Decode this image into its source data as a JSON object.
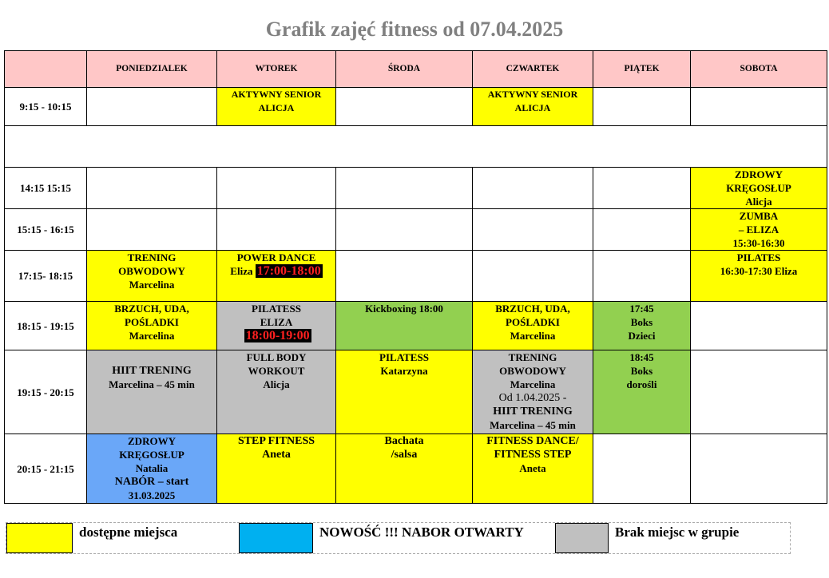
{
  "title": "Grafik zajęć fitness od 07.04.2025",
  "colors": {
    "available": "#ffff00",
    "full": "#c0c0c0",
    "green": "#92d050",
    "new": "#6aa7f8",
    "legend_new": "#00b0f0",
    "header": "#ffc7c7"
  },
  "days": [
    "",
    "PONIEDZIALEK",
    "WTOREK",
    "ŚRODA",
    "CZWARTEK",
    "PIĄTEK",
    "SOBOTA"
  ],
  "rows": [
    {
      "time": "9:15 - 10:15",
      "cells": [
        null,
        {
          "color": "available",
          "lines": [
            {
              "text": "AKTYWNY SENIOR",
              "style": "small"
            },
            {
              "text": "ALICJA",
              "style": "small"
            }
          ]
        },
        null,
        {
          "color": "available",
          "lines": [
            {
              "text": "AKTYWNY SENIOR",
              "style": "small"
            },
            {
              "text": "ALICJA",
              "style": "small"
            }
          ]
        },
        null,
        null
      ]
    },
    {
      "time": "",
      "empty": true
    },
    {
      "time": "14:15 15:15",
      "cells": [
        null,
        null,
        null,
        null,
        null,
        {
          "color": "available",
          "lines": [
            {
              "text": "ZDROWY"
            },
            {
              "text": "KRĘGOSŁUP"
            },
            {
              "text": "Alicja"
            }
          ]
        }
      ]
    },
    {
      "time": "15:15 - 16:15",
      "cells": [
        null,
        null,
        null,
        null,
        null,
        {
          "color": "available",
          "lines": [
            {
              "text": "ZUMBA"
            },
            {
              "text": "– ELIZA"
            },
            {
              "text": "15:30-16:30"
            }
          ]
        }
      ]
    },
    {
      "time": "17:15- 18:15",
      "cells": [
        {
          "color": "available",
          "lines": [
            {
              "text": "TRENING"
            },
            {
              "text": "OBWODOWY"
            },
            {
              "text": "Marcelina"
            }
          ]
        },
        {
          "color": "available",
          "lines": [
            {
              "text": "POWER DANCE"
            },
            {
              "text": "Eliza ",
              "hl": "17:00-18:00"
            }
          ]
        },
        null,
        null,
        null,
        {
          "color": "available",
          "lines": [
            {
              "text": "PILATES"
            },
            {
              "text": "16:30-17:30 Eliza"
            }
          ]
        }
      ]
    },
    {
      "time": "18:15 - 19:15",
      "cells": [
        {
          "color": "available",
          "lines": [
            {
              "text": "BRZUCH, UDA,"
            },
            {
              "text": "POŚLADKI"
            },
            {
              "text": "Marcelina"
            }
          ]
        },
        {
          "color": "full",
          "lines": [
            {
              "text": "PILATESS"
            },
            {
              "text": "ELIZA"
            },
            {
              "text": "",
              "hl": "18:00-19:00"
            }
          ]
        },
        {
          "color": "green",
          "lines": [
            {
              "text": "Kickboxing 18:00"
            }
          ]
        },
        {
          "color": "available",
          "lines": [
            {
              "text": "BRZUCH, UDA,"
            },
            {
              "text": "POŚLADKI"
            },
            {
              "text": "Marcelina"
            }
          ]
        },
        {
          "color": "green",
          "lines": [
            {
              "text": "17:45"
            },
            {
              "text": "Boks"
            },
            {
              "text": "Dzieci"
            }
          ]
        },
        null
      ]
    },
    {
      "time": "19:15 - 20:15",
      "cells": [
        {
          "color": "full",
          "lines": [
            {
              "text": ""
            },
            {
              "text": "HIIT TRENING",
              "style": "big"
            },
            {
              "text": "Marcelina – 45 min"
            }
          ]
        },
        {
          "color": "full",
          "lines": [
            {
              "text": "FULL BODY"
            },
            {
              "text": "WORKOUT"
            },
            {
              "text": "Alicja"
            }
          ]
        },
        {
          "color": "available",
          "lines": [
            {
              "text": "PILATESS"
            },
            {
              "text": "Katarzyna"
            }
          ]
        },
        {
          "color": "full",
          "lines": [
            {
              "text": "TRENING"
            },
            {
              "text": "OBWODOWY"
            },
            {
              "text": "Marcelina"
            },
            {
              "text": "Od 1.04.2025 -",
              "style": "normal"
            },
            {
              "text": "HIIT TRENING",
              "style": "big"
            },
            {
              "text": "Marcelina – 45 min"
            }
          ]
        },
        {
          "color": "green",
          "lines": [
            {
              "text": "18:45"
            },
            {
              "text": "Boks"
            },
            {
              "text": "dorośli"
            }
          ]
        },
        null
      ]
    },
    {
      "time": "20:15 - 21:15",
      "cells": [
        {
          "color": "new",
          "lines": [
            {
              "text": "ZDROWY"
            },
            {
              "text": "KRĘGOSŁUP"
            },
            {
              "text": "Natalia"
            },
            {
              "text": "NABÓR – start",
              "style": "big"
            },
            {
              "text": "31.03.2025"
            }
          ]
        },
        {
          "color": "available",
          "lines": [
            {
              "text": "STEP FITNESS",
              "style": "big"
            },
            {
              "text": "Aneta",
              "style": "big"
            }
          ]
        },
        {
          "color": "available",
          "lines": [
            {
              "text": "Bachata",
              "style": "big"
            },
            {
              "text": "/salsa",
              "style": "big"
            }
          ]
        },
        {
          "color": "available",
          "lines": [
            {
              "text": "FITNESS DANCE/",
              "style": "big"
            },
            {
              "text": "FITNESS STEP",
              "style": "big"
            },
            {
              "text": "Aneta"
            }
          ]
        },
        null,
        null
      ]
    }
  ],
  "legend": [
    {
      "color": "available",
      "label": "dostępne miejsca"
    },
    {
      "color": "legend_new",
      "label": "NOWOŚĆ !!! NABOR OTWARTY"
    },
    {
      "color": "full",
      "label": "Brak miejsc w grupie"
    }
  ]
}
